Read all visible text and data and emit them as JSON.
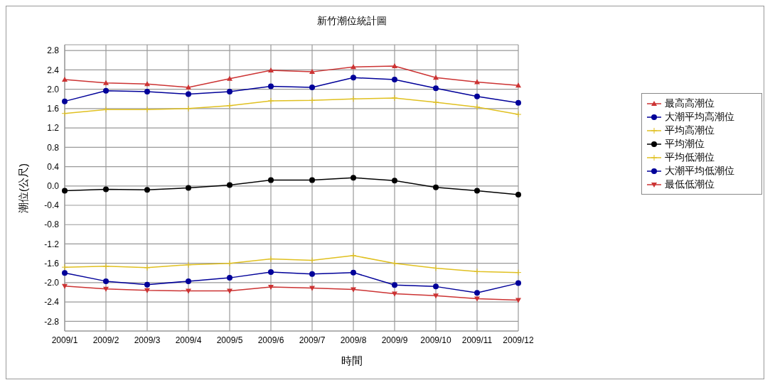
{
  "chart_data": {
    "type": "line",
    "title": "新竹潮位統計圖",
    "xlabel": "時間",
    "ylabel": "潮位(公尺)",
    "categories": [
      "2009/1",
      "2009/2",
      "2009/3",
      "2009/4",
      "2009/5",
      "2009/6",
      "2009/7",
      "2009/8",
      "2009/9",
      "2009/10",
      "2009/11",
      "2009/12"
    ],
    "series": [
      {
        "name": "最高高潮位",
        "color": "#cc3333",
        "marker": "triangle",
        "values": [
          2.2,
          2.13,
          2.11,
          2.04,
          2.22,
          2.39,
          2.36,
          2.46,
          2.48,
          2.24,
          2.15,
          2.08
        ]
      },
      {
        "name": "大潮平均高潮位",
        "color": "#000099",
        "marker": "circle",
        "values": [
          1.75,
          1.97,
          1.95,
          1.9,
          1.95,
          2.06,
          2.04,
          2.24,
          2.2,
          2.02,
          1.85,
          1.72
        ]
      },
      {
        "name": "平均高潮位",
        "color": "#e0c020",
        "marker": "cross",
        "values": [
          1.5,
          1.58,
          1.58,
          1.6,
          1.66,
          1.76,
          1.77,
          1.8,
          1.82,
          1.73,
          1.63,
          1.48
        ]
      },
      {
        "name": "平均潮位",
        "color": "#000000",
        "marker": "circle",
        "values": [
          -0.1,
          -0.07,
          -0.08,
          -0.04,
          0.02,
          0.12,
          0.12,
          0.17,
          0.11,
          -0.03,
          -0.1,
          -0.18
        ]
      },
      {
        "name": "平均低潮位",
        "color": "#e0c020",
        "marker": "cross",
        "values": [
          -1.68,
          -1.66,
          -1.69,
          -1.63,
          -1.6,
          -1.51,
          -1.54,
          -1.44,
          -1.6,
          -1.7,
          -1.77,
          -1.79
        ]
      },
      {
        "name": "大潮平均低潮位",
        "color": "#000099",
        "marker": "circle",
        "values": [
          -1.8,
          -1.97,
          -2.04,
          -1.97,
          -1.9,
          -1.78,
          -1.82,
          -1.79,
          -2.05,
          -2.08,
          -2.21,
          -2.01
        ]
      },
      {
        "name": "最低低潮位",
        "color": "#cc3333",
        "marker": "triangle-down",
        "values": [
          -2.07,
          -2.13,
          -2.16,
          -2.17,
          -2.17,
          -2.09,
          -2.11,
          -2.14,
          -2.23,
          -2.27,
          -2.33,
          -2.36
        ]
      }
    ],
    "ylim": [
      -3.0,
      2.92
    ],
    "yticks": [
      2.8,
      2.4,
      {
        "value": 2.0,
        "label": "2.0"
      },
      1.6,
      1.2,
      0.8,
      0.4,
      {
        "value": 0.0,
        "label": "0.0"
      },
      -0.4,
      -0.8,
      -1.2,
      -1.6,
      {
        "value": -2.0,
        "label": "-2.0"
      },
      -2.4,
      -2.8
    ],
    "grid": true,
    "legend": "right",
    "line_style": "solid"
  }
}
